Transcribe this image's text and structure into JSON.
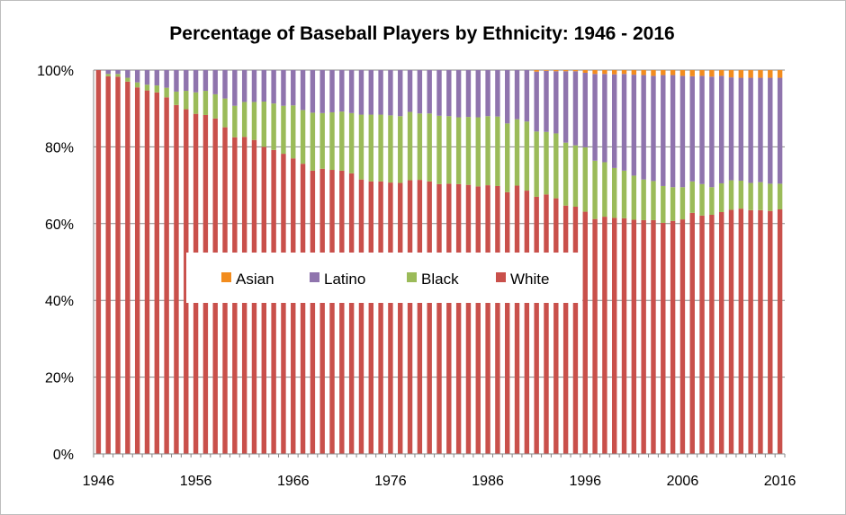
{
  "chart_data": {
    "type": "bar",
    "stacked": true,
    "title": "Percentage of Baseball Players by Ethnicity: 1946 - 2016",
    "xlabel": "",
    "ylabel": "",
    "ylim": [
      0,
      100
    ],
    "y_ticks": [
      "0%",
      "20%",
      "40%",
      "60%",
      "80%",
      "100%"
    ],
    "x_ticks": [
      "1946",
      "1956",
      "1966",
      "1976",
      "1986",
      "1996",
      "2006",
      "2016"
    ],
    "grid": "horizontal",
    "legend_position": "inside-center-left",
    "legend_order": [
      "Asian",
      "Latino",
      "Black",
      "White"
    ],
    "x": [
      1946,
      1947,
      1948,
      1949,
      1950,
      1951,
      1952,
      1953,
      1954,
      1955,
      1956,
      1957,
      1958,
      1959,
      1960,
      1961,
      1962,
      1963,
      1964,
      1965,
      1966,
      1967,
      1968,
      1969,
      1970,
      1971,
      1972,
      1973,
      1974,
      1975,
      1976,
      1977,
      1978,
      1979,
      1980,
      1981,
      1982,
      1983,
      1984,
      1985,
      1986,
      1987,
      1988,
      1989,
      1990,
      1991,
      1992,
      1993,
      1994,
      1995,
      1996,
      1997,
      1998,
      1999,
      2000,
      2001,
      2002,
      2003,
      2004,
      2005,
      2006,
      2007,
      2008,
      2009,
      2010,
      2011,
      2012,
      2013,
      2014,
      2015,
      2016
    ],
    "series": [
      {
        "name": "White",
        "color": "#C9504B",
        "values": [
          100,
          98.4,
          98.3,
          97,
          95.5,
          94.7,
          94.2,
          92.9,
          90.9,
          89.8,
          88.6,
          88.3,
          87.4,
          85.1,
          82.5,
          82.6,
          81.8,
          80,
          79.2,
          78.2,
          77,
          75.6,
          73.8,
          74.3,
          74,
          73.8,
          73.1,
          71.5,
          71,
          71,
          70.7,
          70.6,
          71.3,
          71.4,
          71,
          70.3,
          70.4,
          70.3,
          70.1,
          69.7,
          70,
          69.8,
          68.2,
          69.9,
          68.6,
          67,
          67.6,
          66.6,
          64.7,
          64.4,
          63.1,
          61.2,
          61.8,
          61.5,
          61.4,
          61,
          60.9,
          60.9,
          60.2,
          60.7,
          61.1,
          62.8,
          62.1,
          62.3,
          63,
          63.6,
          63.9,
          63.5,
          63.5,
          63.3,
          63.7
        ]
      },
      {
        "name": "Black",
        "color": "#9BBB59",
        "values": [
          0,
          0.6,
          0.7,
          1,
          1.3,
          1.5,
          1.8,
          2.5,
          3.5,
          4.8,
          5.6,
          6.3,
          6.3,
          7.5,
          8.2,
          9.1,
          9.9,
          11.8,
          12.1,
          12.5,
          13.8,
          14,
          15.1,
          14.5,
          15,
          15.4,
          15.7,
          16.9,
          17.4,
          17.4,
          17.5,
          17.4,
          17.8,
          17.3,
          17.7,
          17.8,
          17.6,
          17.4,
          17.7,
          18,
          18,
          18.1,
          17.9,
          17.3,
          18,
          17,
          16.3,
          16.9,
          16.4,
          16,
          16.8,
          15.2,
          14.2,
          13,
          12.4,
          11.5,
          10.6,
          10.2,
          9.6,
          8.8,
          8.4,
          8.2,
          8.2,
          7.2,
          7.5,
          7.7,
          7.3,
          7.1,
          7.3,
          7.1,
          6.7
        ]
      },
      {
        "name": "Latino",
        "color": "#8F74AD",
        "values": [
          0,
          1,
          1,
          2,
          3.2,
          3.8,
          4,
          4.6,
          5.6,
          5.4,
          5.8,
          5.4,
          6.3,
          7.4,
          9.3,
          8.3,
          8.3,
          8.2,
          8.7,
          9.3,
          9.2,
          10.4,
          11.1,
          11.2,
          11,
          10.8,
          11.2,
          11.6,
          11.6,
          11.6,
          11.8,
          12,
          10.9,
          11.3,
          11.3,
          11.9,
          12,
          12.3,
          12.2,
          12.3,
          12,
          12.1,
          13.9,
          12.8,
          13.4,
          15.6,
          15.9,
          16.2,
          18.6,
          19.3,
          19.4,
          22.6,
          23,
          24.4,
          25.2,
          26.3,
          27.2,
          27.4,
          28.9,
          29.2,
          29,
          27.4,
          28.2,
          28.8,
          28,
          26.8,
          26.8,
          27.4,
          27.2,
          27.6,
          27.6
        ]
      },
      {
        "name": "Asian",
        "color": "#F28C1E",
        "values": [
          0,
          0,
          0,
          0,
          0,
          0,
          0,
          0,
          0,
          0,
          0,
          0,
          0,
          0,
          0,
          0,
          0,
          0,
          0,
          0,
          0,
          0,
          0,
          0,
          0,
          0,
          0,
          0,
          0,
          0,
          0,
          0,
          0,
          0,
          0,
          0,
          0,
          0,
          0,
          0,
          0,
          0,
          0,
          0,
          0,
          0.4,
          0.2,
          0.3,
          0.3,
          0.3,
          0.7,
          1,
          1,
          1.1,
          1,
          1.2,
          1.3,
          1.5,
          1.3,
          1.3,
          1.5,
          1.6,
          1.5,
          1.7,
          1.5,
          1.9,
          2,
          2,
          2,
          2,
          2
        ]
      }
    ]
  }
}
